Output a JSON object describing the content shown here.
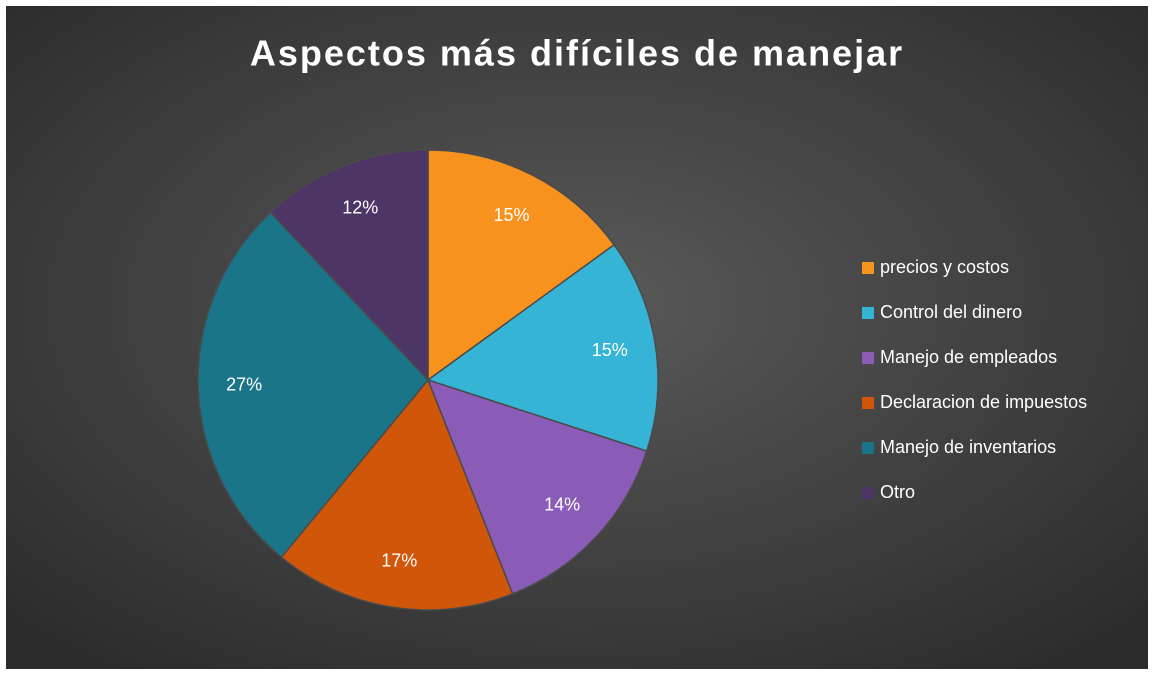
{
  "chart_data": {
    "type": "pie",
    "title": "Aspectos más difíciles de manejar",
    "categories": [
      "precios y costos",
      "Control del dinero",
      "Manejo de empleados",
      "Declaracion de impuestos",
      "Manejo de inventarios",
      "Otro"
    ],
    "values": [
      15,
      15,
      14,
      17,
      27,
      12
    ],
    "value_labels": [
      "15%",
      "15%",
      "14%",
      "17%",
      "27%",
      "12%"
    ],
    "colors": [
      "#f7921e",
      "#36b4d6",
      "#8a5cb8",
      "#d0560a",
      "#1b7589",
      "#4d3566"
    ],
    "legend": "right"
  }
}
